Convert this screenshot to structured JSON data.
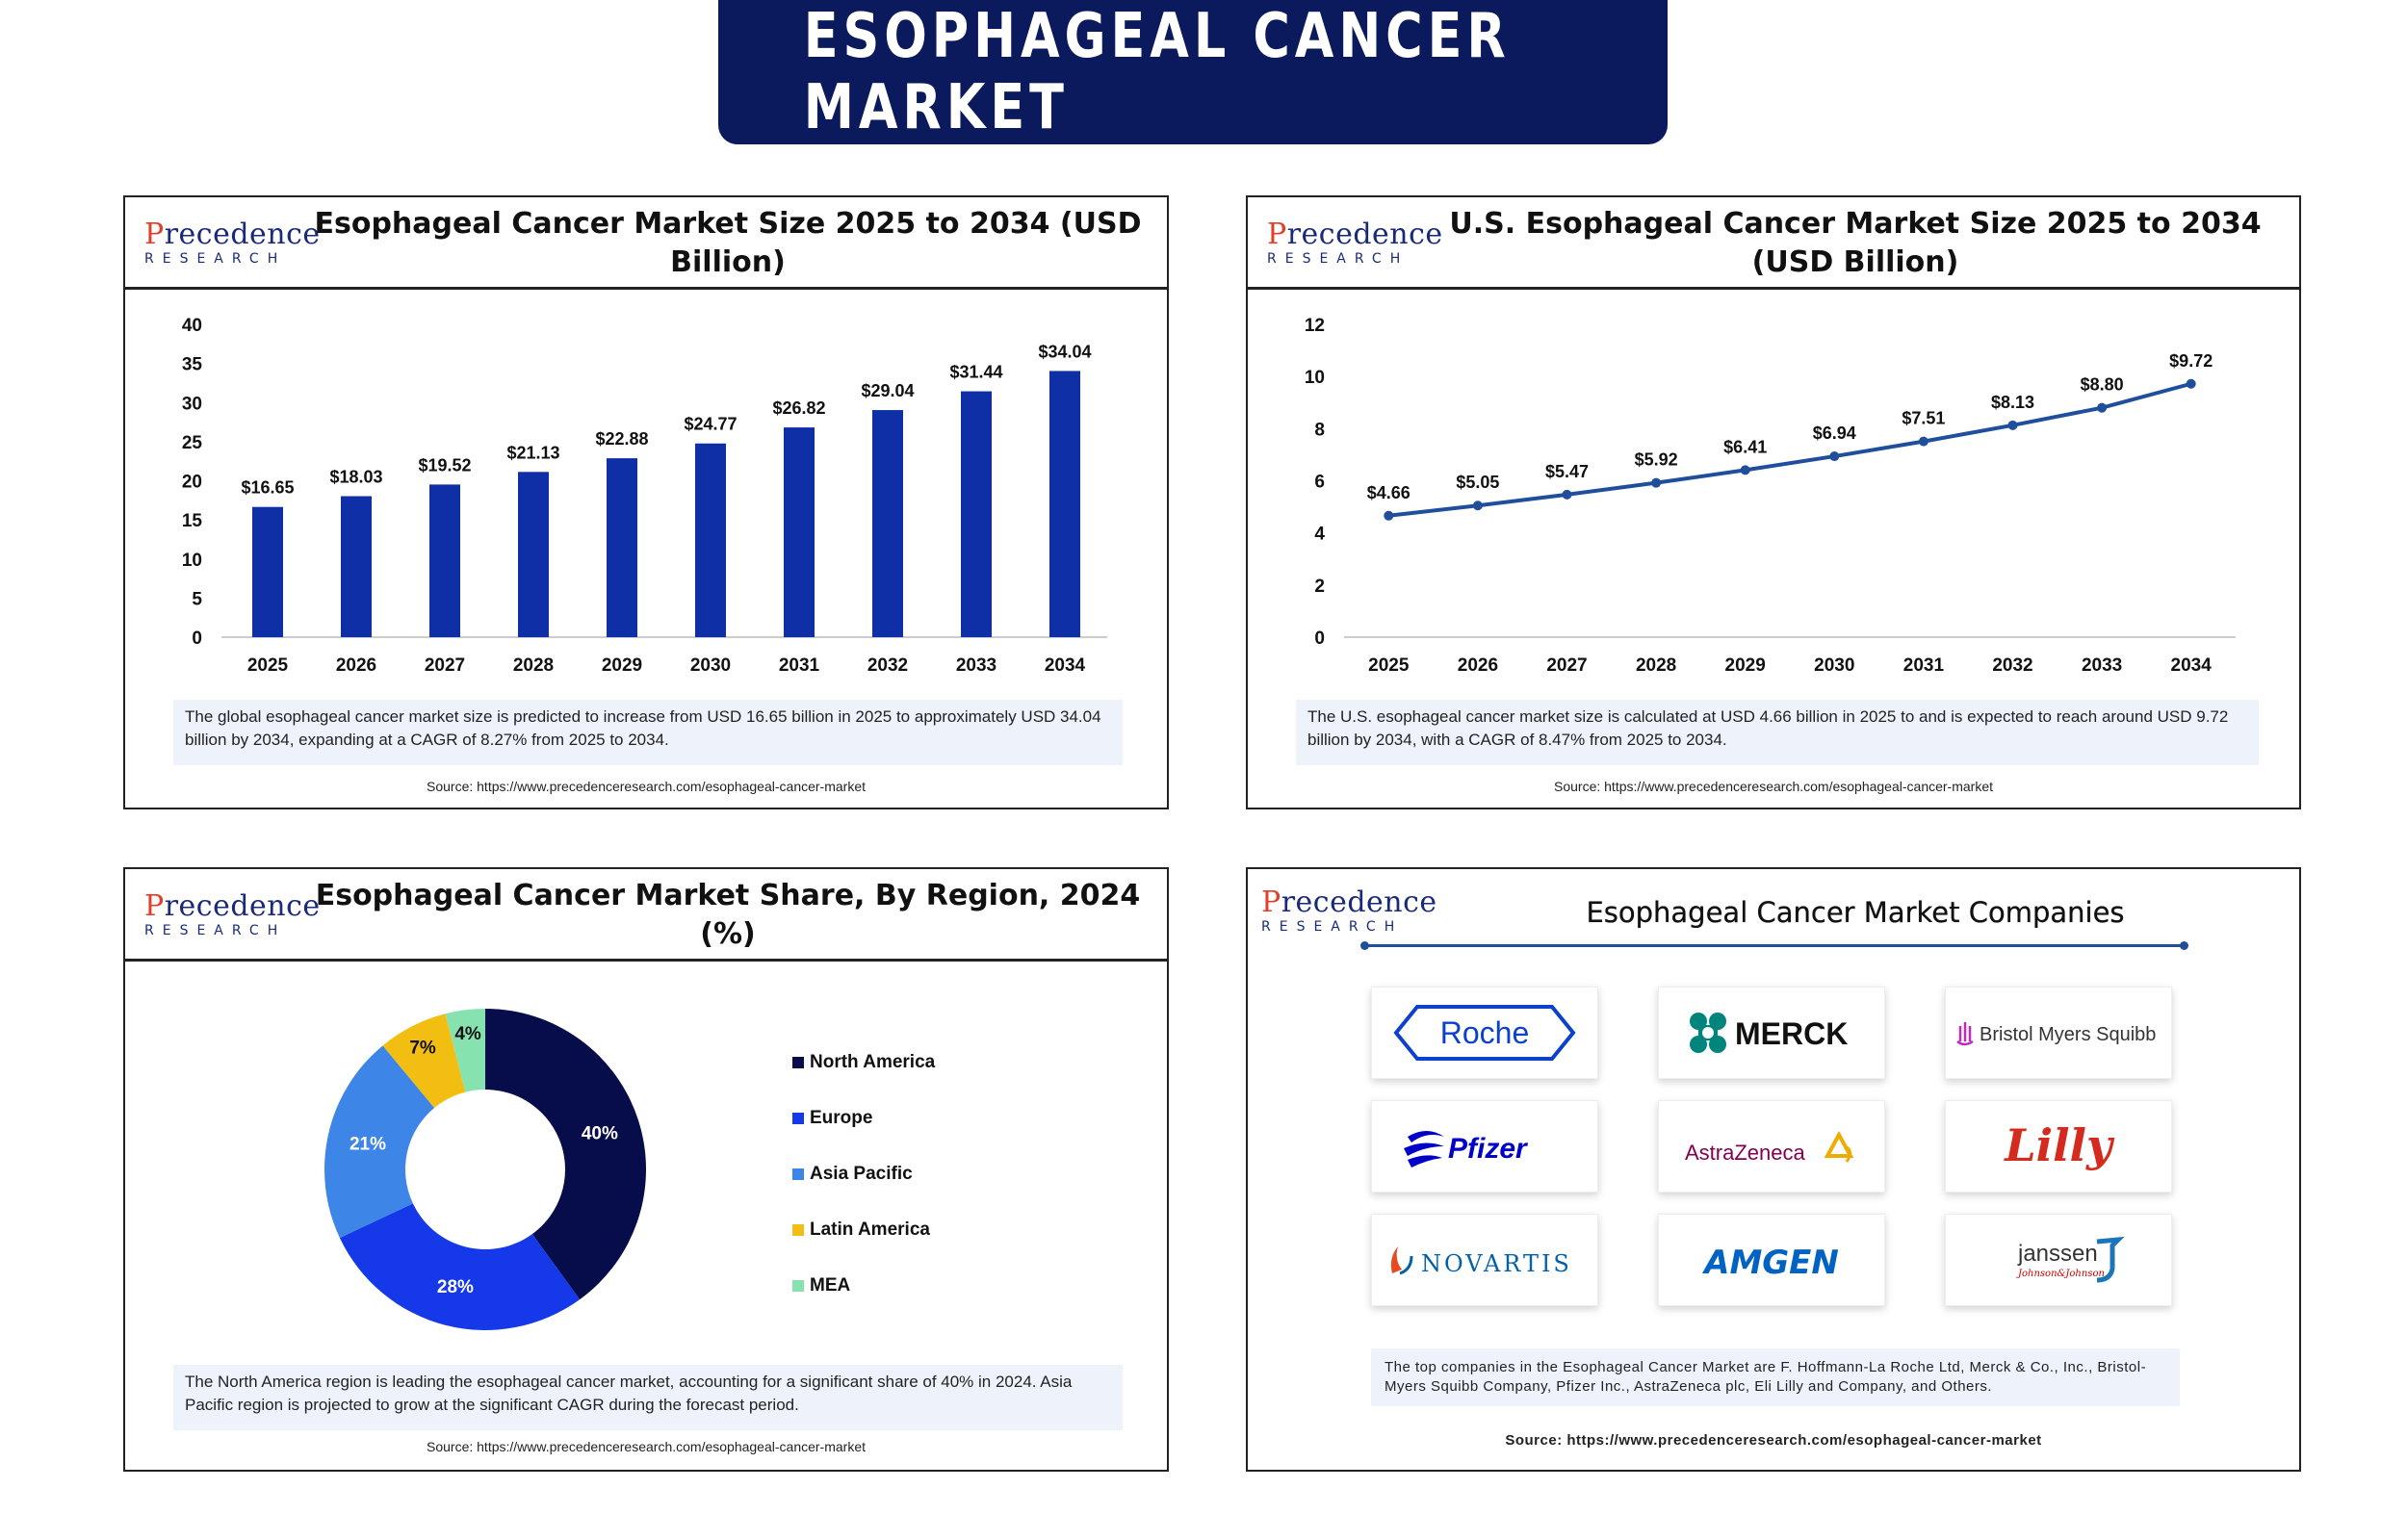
{
  "page_title": "ESOPHAGEAL CANCER MARKET",
  "brand": {
    "logo_main_p": "P",
    "logo_main_rest": "recedence",
    "logo_sub": "RESEARCH",
    "navy": "#0a1a5c",
    "bar_blue": "#0e2fa6",
    "line_blue": "#1f4e9c"
  },
  "panels": {
    "global": {
      "title": "Esophageal Cancer Market Size 2025 to 2034 (USD Billion)",
      "description": "The global esophageal cancer market size is predicted to increase from USD 16.65 billion in 2025 to approximately USD 34.04 billion by 2034, expanding at a CAGR of 8.27% from 2025 to 2034.",
      "source": "Source: https://www.precedenceresearch.com/esophageal-cancer-market"
    },
    "us": {
      "title_line1": "U.S. Esophageal Cancer Market Size 2025 to 2034",
      "title_line2": "(USD Billion)",
      "description": "The U.S. esophageal cancer market size is calculated at USD 4.66 billion in 2025 to and is expected to reach around USD 9.72 billion by 2034, with a CAGR of 8.47% from 2025 to 2034.",
      "source": "Source: https://www.precedenceresearch.com/esophageal-cancer-market"
    },
    "region": {
      "title": "Esophageal Cancer Market Share, By Region, 2024 (%)",
      "description": "The North America region is leading the esophageal cancer market, accounting for a significant share of 40% in 2024. Asia Pacific region is projected to grow at the significant CAGR during the forecast period.",
      "source": "Source: https://www.precedenceresearch.com/esophageal-cancer-market"
    },
    "companies": {
      "title": "Esophageal Cancer Market Companies",
      "logos": [
        "Roche",
        "MERCK",
        "Bristol Myers Squibb",
        "Pfizer",
        "AstraZeneca",
        "Lilly",
        "NOVARTIS",
        "AMGEN",
        "janssen"
      ],
      "janssen_sub": "Johnson&Johnson",
      "description": "The top companies in the Esophageal Cancer Market are F. Hoffmann-La Roche Ltd, Merck & Co., Inc., Bristol-Myers Squibb Company, Pfizer Inc., AstraZeneca plc, Eli Lilly and Company, and Others.",
      "source": "Source: https://www.precedenceresearch.com/esophageal-cancer-market"
    }
  },
  "chart_data": [
    {
      "type": "bar",
      "title": "Esophageal Cancer Market Size 2025 to 2034 (USD Billion)",
      "categories": [
        "2025",
        "2026",
        "2027",
        "2028",
        "2029",
        "2030",
        "2031",
        "2032",
        "2033",
        "2034"
      ],
      "values": [
        16.65,
        18.03,
        19.52,
        21.13,
        22.88,
        24.77,
        26.82,
        29.04,
        31.44,
        34.04
      ],
      "data_labels": [
        "$16.65",
        "$18.03",
        "$19.52",
        "$21.13",
        "$22.88",
        "$24.77",
        "$26.82",
        "$29.04",
        "$31.44",
        "$34.04"
      ],
      "yticks": [
        0,
        5,
        10,
        15,
        20,
        25,
        30,
        35,
        40
      ],
      "ylim": [
        0,
        40
      ],
      "color": "#0e2fa6"
    },
    {
      "type": "line",
      "title": "U.S. Esophageal Cancer Market Size 2025 to 2034 (USD Billion)",
      "categories": [
        "2025",
        "2026",
        "2027",
        "2028",
        "2029",
        "2030",
        "2031",
        "2032",
        "2033",
        "2034"
      ],
      "values": [
        4.66,
        5.05,
        5.47,
        5.92,
        6.41,
        6.94,
        7.51,
        8.13,
        8.8,
        9.72
      ],
      "data_labels": [
        "$4.66",
        "$5.05",
        "$5.47",
        "$5.92",
        "$6.41",
        "$6.94",
        "$7.51",
        "$8.13",
        "$8.80",
        "$9.72"
      ],
      "yticks": [
        0,
        2,
        4,
        6,
        8,
        10,
        12
      ],
      "ylim": [
        0,
        12
      ],
      "color": "#1f4e9c"
    },
    {
      "type": "pie",
      "title": "Esophageal Cancer Market Share, By Region, 2024 (%)",
      "labels": [
        "North America",
        "Europe",
        "Asia Pacific",
        "Latin America",
        "MEA"
      ],
      "values": [
        40,
        28,
        21,
        7,
        4
      ],
      "data_labels": [
        "40%",
        "28%",
        "21%",
        "7%",
        "4%"
      ],
      "colors": [
        "#070d4a",
        "#1539e8",
        "#3d85e6",
        "#f2be12",
        "#86e3b0"
      ],
      "label_colors": [
        "#ffffff",
        "#ffffff",
        "#ffffff",
        "#111111",
        "#111111"
      ]
    }
  ]
}
